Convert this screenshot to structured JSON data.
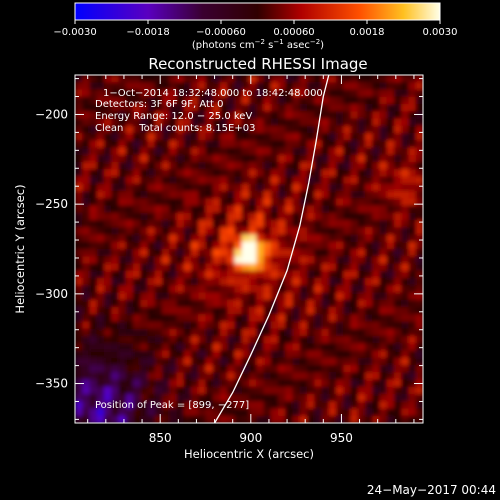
{
  "chart_data": {
    "type": "heatmap",
    "title": "Reconstructed RHESSI Image",
    "xlabel": "Heliocentric X (arcsec)",
    "ylabel": "Heliocentric Y (arcsec)",
    "xlim": [
      803,
      995
    ],
    "ylim": [
      -372,
      -178
    ],
    "xticks": [
      850,
      900,
      950
    ],
    "xtick_labels": [
      "850",
      "900",
      "950"
    ],
    "yticks": [
      -200,
      -250,
      -300,
      -350
    ],
    "ytick_labels": [
      "−200",
      "−250",
      "−300",
      "−350"
    ],
    "colorbar": {
      "range": [
        -0.003,
        0.003
      ],
      "ticks": [
        -0.003,
        -0.0018,
        -0.0006,
        0.0006,
        0.0018,
        0.003
      ],
      "tick_labels": [
        "−0.0030",
        "−0.0018",
        "−0.00060",
        "0.00060",
        "0.0018",
        "0.0030"
      ],
      "label_main": "(photons cm",
      "label_exp1": "−2",
      "label_mid1": " s",
      "label_exp2": "−1",
      "label_mid2": " asec",
      "label_exp3": "−2",
      "label_end": ")"
    },
    "annotations": {
      "time_range": "1−Oct−2014 18:32:48.000 to 18:42:48.000",
      "detectors": "Detectors: 3F 6F 9F, Att 0",
      "energy": "Energy Range: 12.0 − 25.0 keV",
      "clean": "Clean     Total counts: 8.15E+03",
      "peak": "Position of Peak = [899, −277]"
    },
    "peak": {
      "x": 899,
      "y": -277
    },
    "limb_curve": [
      [
        880,
        -372
      ],
      [
        890,
        -355
      ],
      [
        900,
        -334
      ],
      [
        910,
        -312
      ],
      [
        920,
        -287
      ],
      [
        927,
        -262
      ],
      [
        932,
        -238
      ],
      [
        936,
        -215
      ],
      [
        940,
        -190
      ],
      [
        943,
        -178
      ]
    ],
    "colors": {
      "background": "#000000",
      "axis": "#ffffff",
      "limb": "#ffffff"
    }
  },
  "footer": {
    "date": "24−May−2017 00:44"
  }
}
